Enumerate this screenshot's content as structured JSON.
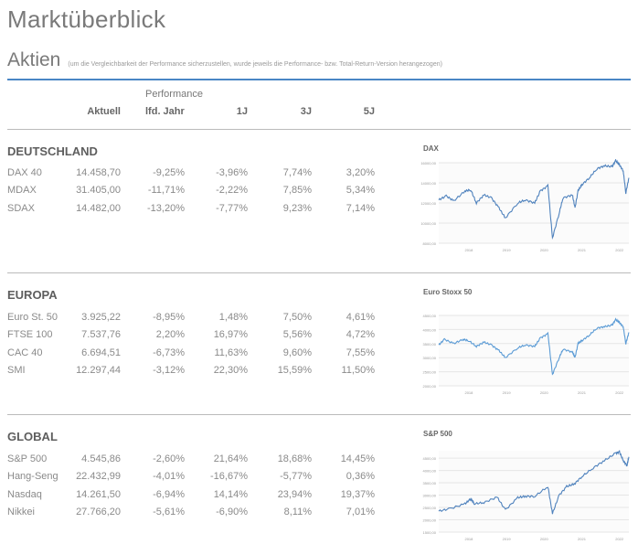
{
  "page_title": "Marktüberblick",
  "section_title": "Aktien",
  "section_note": "(um die Vergleichbarkeit der Performance sicherzustellen, wurde jeweils die Performance- bzw. Total-Return-Version herangezogen)",
  "header": {
    "performance": "Performance",
    "columns": [
      "Aktuell",
      "lfd. Jahr",
      "1J",
      "3J",
      "5J"
    ]
  },
  "groups": [
    {
      "name": "DEUTSCHLAND",
      "rows": [
        [
          "DAX 40",
          "14.458,70",
          "-9,25%",
          "-3,96%",
          "7,74%",
          "3,20%"
        ],
        [
          "MDAX",
          "31.405,00",
          "-11,71%",
          "-2,22%",
          "7,85%",
          "5,34%"
        ],
        [
          "SDAX",
          "14.482,00",
          "-13,20%",
          "-7,77%",
          "9,23%",
          "7,14%"
        ]
      ]
    },
    {
      "name": "EUROPA",
      "rows": [
        [
          "Euro St. 50",
          "3.925,22",
          "-8,95%",
          "1,48%",
          "7,50%",
          "4,61%"
        ],
        [
          "FTSE 100",
          "7.537,76",
          "2,20%",
          "16,97%",
          "5,56%",
          "4,72%"
        ],
        [
          "CAC 40",
          "6.694,51",
          "-6,73%",
          "11,63%",
          "9,60%",
          "7,55%"
        ],
        [
          "SMI",
          "12.297,44",
          "-3,12%",
          "22,30%",
          "15,59%",
          "11,50%"
        ]
      ]
    },
    {
      "name": "GLOBAL",
      "rows": [
        [
          "S&P 500",
          "4.545,86",
          "-2,60%",
          "21,64%",
          "18,68%",
          "14,45%"
        ],
        [
          "Hang-Seng",
          "22.432,99",
          "-4,01%",
          "-16,67%",
          "-5,77%",
          "0,36%"
        ],
        [
          "Nasdaq",
          "14.261,50",
          "-6,94%",
          "14,14%",
          "23,94%",
          "19,37%"
        ],
        [
          "Nikkei",
          "27.766,20",
          "-5,61%",
          "-6,90%",
          "8,11%",
          "7,01%"
        ]
      ]
    }
  ],
  "chart_data": [
    {
      "type": "line",
      "title": "DAX",
      "line_color": "#4f82bd",
      "grid": true,
      "xticks": [
        "2018",
        "2019",
        "2020",
        "2021",
        "2022"
      ],
      "yticks": [
        "8000,00",
        "10000,00",
        "12000,00",
        "14000,00",
        "16000,00"
      ],
      "ylim": [
        8000,
        16000
      ],
      "xlim": [
        2017.2,
        2022.25
      ],
      "x": [
        2017.2,
        2017.4,
        2017.6,
        2017.9,
        2018.05,
        2018.2,
        2018.4,
        2018.6,
        2018.8,
        2018.97,
        2019.3,
        2019.5,
        2019.75,
        2019.9,
        2020.1,
        2020.22,
        2020.4,
        2020.5,
        2020.75,
        2020.82,
        2020.9,
        2021.0,
        2021.2,
        2021.4,
        2021.6,
        2021.8,
        2021.9,
        2022.0,
        2022.1,
        2022.17,
        2022.25
      ],
      "y": [
        12300,
        12700,
        12200,
        13200,
        13300,
        12000,
        12800,
        12500,
        11500,
        10500,
        12000,
        12300,
        12000,
        13200,
        13700,
        8500,
        11000,
        12500,
        12800,
        11500,
        13200,
        13800,
        14500,
        15400,
        15700,
        15600,
        16200,
        15800,
        15200,
        13000,
        14500
      ]
    },
    {
      "type": "line",
      "title": "Euro Stoxx 50",
      "line_color": "#5b9bd5",
      "grid": true,
      "xticks": [
        "2018",
        "2019",
        "2020",
        "2021",
        "2022"
      ],
      "yticks": [
        "2000,00",
        "2500,00",
        "3000,00",
        "3500,00",
        "4000,00",
        "4500,00"
      ],
      "ylim": [
        2000,
        4500
      ],
      "xlim": [
        2017.2,
        2022.25
      ],
      "x": [
        2017.2,
        2017.35,
        2017.6,
        2017.85,
        2018.0,
        2018.2,
        2018.4,
        2018.6,
        2018.8,
        2018.97,
        2019.3,
        2019.5,
        2019.75,
        2019.9,
        2020.1,
        2020.22,
        2020.4,
        2020.5,
        2020.75,
        2020.82,
        2020.9,
        2021.0,
        2021.2,
        2021.4,
        2021.6,
        2021.8,
        2021.9,
        2022.0,
        2022.1,
        2022.17,
        2022.25
      ],
      "y": [
        3450,
        3650,
        3500,
        3650,
        3600,
        3400,
        3550,
        3450,
        3250,
        3000,
        3350,
        3450,
        3400,
        3700,
        3850,
        2400,
        3000,
        3300,
        3200,
        3000,
        3500,
        3600,
        3800,
        4050,
        4100,
        4150,
        4350,
        4250,
        4100,
        3500,
        3900
      ]
    },
    {
      "type": "line",
      "title": "S&P 500",
      "line_color": "#4f82bd",
      "grid": true,
      "xticks": [
        "2018",
        "2019",
        "2020",
        "2021",
        "2022"
      ],
      "yticks": [
        "1500,00",
        "2000,00",
        "2500,00",
        "3000,00",
        "3500,00",
        "4000,00",
        "4500,00"
      ],
      "ylim": [
        1500,
        4800
      ],
      "xlim": [
        2017.2,
        2022.25
      ],
      "x": [
        2017.2,
        2017.5,
        2017.9,
        2018.05,
        2018.15,
        2018.4,
        2018.75,
        2018.97,
        2019.3,
        2019.5,
        2019.75,
        2020.1,
        2020.22,
        2020.4,
        2020.6,
        2020.8,
        2021.0,
        2021.3,
        2021.6,
        2021.9,
        2022.0,
        2022.1,
        2022.2,
        2022.25
      ],
      "y": [
        2350,
        2450,
        2650,
        2850,
        2650,
        2700,
        2920,
        2400,
        2900,
        2950,
        2950,
        3350,
        2250,
        3000,
        3350,
        3450,
        3750,
        4100,
        4400,
        4700,
        4750,
        4400,
        4200,
        4550
      ]
    }
  ]
}
